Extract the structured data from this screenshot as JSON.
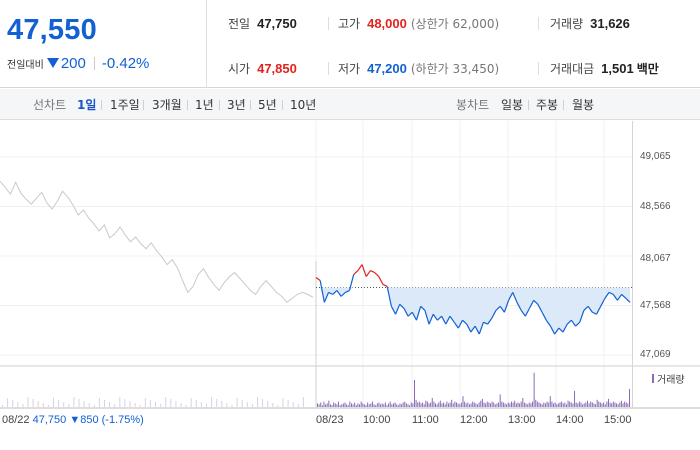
{
  "header": {
    "price": "47,550",
    "change_label": "전일대비",
    "change_value": "200",
    "change_pct": "-0.42%",
    "stats": {
      "prev_close": {
        "label": "전일",
        "value": "47,750"
      },
      "high": {
        "label": "고가",
        "value": "48,000",
        "sub": "(상한가 62,000)"
      },
      "volume": {
        "label": "거래량",
        "value": "31,626"
      },
      "open": {
        "label": "시가",
        "value": "47,850"
      },
      "low": {
        "label": "저가",
        "value": "47,200",
        "sub": "(하한가 33,450)"
      },
      "trade_amount": {
        "label": "거래대금",
        "value": "1,501",
        "unit": "백만"
      }
    }
  },
  "period_bar": {
    "line_label": "선차트",
    "line_options": [
      "1일",
      "1주일",
      "3개월",
      "1년",
      "3년",
      "5년",
      "10년"
    ],
    "selected": "1일",
    "candle_label": "봉차트",
    "candle_options": [
      "일봉",
      "주봉",
      "월봉"
    ]
  },
  "colors": {
    "up": "#e2221b",
    "down": "#1260d4",
    "prev_day_line": "#c9c9c9",
    "fill": "#dce9f8",
    "volume_bar": "#8a6bb8"
  },
  "chart_data": {
    "type": "line",
    "y_ticks": [
      "49,065",
      "48,566",
      "48,067",
      "47,568",
      "47,069"
    ],
    "ylim": [
      47069,
      49065
    ],
    "reference_price": 47750,
    "x_ticks": [
      "08/23",
      "10:00",
      "11:00",
      "12:00",
      "13:00",
      "14:00",
      "15:00"
    ],
    "previous_day": {
      "info_date": "08/22",
      "info_close": "47,750",
      "info_change": "850",
      "info_pct": "(-1.75%)",
      "values": [
        48820,
        48760,
        48690,
        48810,
        48700,
        48640,
        48590,
        48650,
        48710,
        48600,
        48540,
        48620,
        48720,
        48660,
        48580,
        48480,
        48530,
        48450,
        48390,
        48320,
        48380,
        48250,
        48290,
        48360,
        48280,
        48210,
        48260,
        48190,
        48140,
        48200,
        48120,
        48060,
        47980,
        48030,
        47950,
        47820,
        47700,
        47760,
        47880,
        47940,
        47850,
        47780,
        47720,
        47800,
        47860,
        47900,
        47840,
        47780,
        47720,
        47680,
        47760,
        47820,
        47760,
        47700,
        47660,
        47600,
        47640,
        47680,
        47700,
        47680,
        47650
      ]
    },
    "current_day": {
      "values": [
        47850,
        47820,
        47600,
        47700,
        47680,
        47720,
        47660,
        47700,
        47720,
        47880,
        47920,
        47980,
        47860,
        47920,
        47900,
        47860,
        47780,
        47760,
        47560,
        47480,
        47580,
        47540,
        47460,
        47500,
        47420,
        47560,
        47520,
        47380,
        47480,
        47420,
        47460,
        47380,
        47460,
        47400,
        47340,
        47420,
        47380,
        47300,
        47360,
        47280,
        47400,
        47380,
        47440,
        47520,
        47560,
        47500,
        47620,
        47700,
        47600,
        47520,
        47460,
        47540,
        47620,
        47580,
        47500,
        47420,
        47360,
        47280,
        47340,
        47300,
        47380,
        47420,
        47360,
        47400,
        47520,
        47560,
        47500,
        47480,
        47560,
        47640,
        47700,
        47680,
        47620,
        47680,
        47640,
        47600
      ]
    },
    "volume_legend": "거래량",
    "volume": [
      4,
      3,
      5,
      2,
      6,
      3,
      4,
      7,
      3,
      2,
      5,
      4,
      3,
      6,
      2,
      3,
      4,
      5,
      3,
      2,
      6,
      4,
      3,
      5,
      2,
      4,
      3,
      6,
      4,
      3,
      2,
      5,
      3,
      4,
      6,
      3,
      2,
      4,
      5,
      3,
      4,
      3,
      5,
      2,
      4,
      6,
      3,
      4,
      5,
      3,
      2,
      4,
      3,
      5,
      6,
      4,
      3,
      2,
      5,
      4,
      30,
      8,
      5,
      6,
      4,
      5,
      3,
      7,
      6,
      4,
      5,
      10,
      6,
      4,
      3,
      5,
      7,
      4,
      5,
      3,
      6,
      4,
      5,
      8,
      4,
      6,
      5,
      4,
      3,
      5,
      12,
      6,
      4,
      5,
      3,
      4,
      6,
      5,
      4,
      3,
      5,
      7,
      9,
      5,
      4,
      6,
      5,
      4,
      6,
      5,
      3,
      4,
      5,
      14,
      6,
      5,
      4,
      3,
      5,
      4,
      6,
      5,
      7,
      4,
      5,
      4,
      6,
      10,
      5,
      4,
      3,
      5,
      4,
      6,
      38,
      8,
      6,
      5,
      4,
      3,
      5,
      4,
      6,
      5,
      12,
      6,
      4,
      5,
      3,
      4,
      5,
      6,
      4,
      5,
      3,
      7,
      6,
      5,
      4,
      18,
      5,
      4,
      6,
      5,
      3,
      4,
      5,
      7,
      4,
      6,
      5,
      4,
      3,
      8,
      6,
      5,
      4,
      5,
      3,
      6,
      9,
      5,
      4,
      6,
      5,
      4,
      3,
      5,
      7,
      4,
      6,
      5,
      4,
      20
    ]
  }
}
